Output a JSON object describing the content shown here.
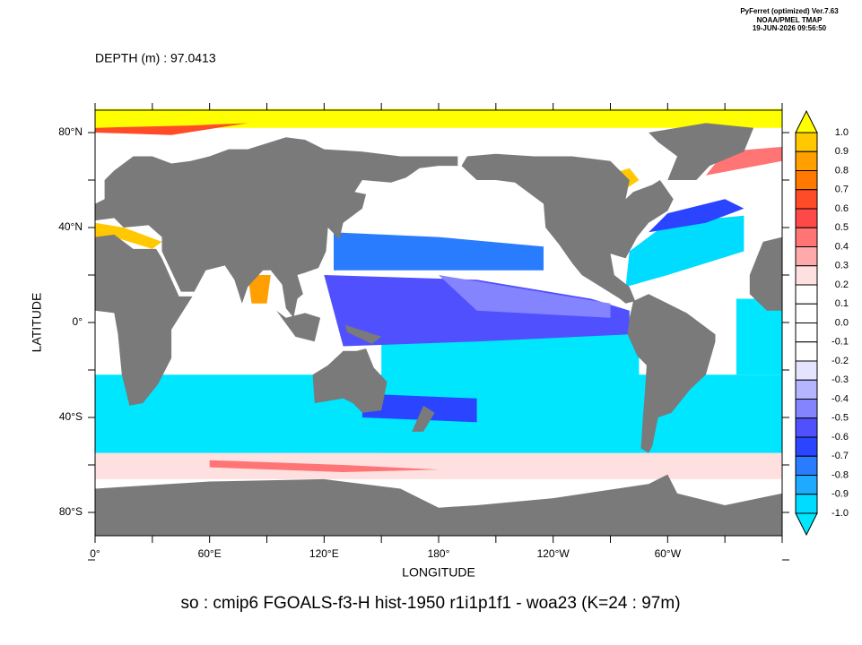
{
  "header": {
    "lines": [
      "PyFerret (optimized) Ver.7.63",
      "NOAA/PMEL TMAP",
      "19-JUN-2026 09:56:50"
    ]
  },
  "depth_label": "DEPTH (m) : 97.0413",
  "map": {
    "x_axis_title": "LONGITUDE",
    "y_axis_title": "LATITUDE",
    "x_tick_labels": [
      "0°",
      "60°E",
      "120°E",
      "180°",
      "120°W",
      "60°W"
    ],
    "y_tick_labels": [
      "80°N",
      "40°N",
      "0°",
      "40°S",
      "80°S"
    ]
  },
  "colorbar": {
    "labels": [
      "1.0",
      "0.9",
      "0.8",
      "0.7",
      "0.6",
      "0.5",
      "0.4",
      "0.3",
      "0.2",
      "0.1",
      "0.0",
      "-0.1",
      "-0.2",
      "-0.3",
      "-0.4",
      "-0.5",
      "-0.6",
      "-0.7",
      "-0.8",
      "-0.9",
      "-1.0"
    ],
    "colors": [
      "#ffc800",
      "#ffa000",
      "#ff7800",
      "#ff4c28",
      "#ff4848",
      "#ff7474",
      "#ffaaaa",
      "#ffe0e0",
      "#ffffff",
      "#ffffff",
      "#ffffff",
      "#ffffff",
      "#e4e4ff",
      "#b4b4ff",
      "#8484ff",
      "#5050ff",
      "#2a44ff",
      "#2a7cff",
      "#1eaaff",
      "#00dcff"
    ],
    "over_color": "#ffff00",
    "under_color": "#00e6ff"
  },
  "footer_title": "so : cmip6 FGOALS-f3-H hist-1950 r1i1p1f1 - woa23  (K=24 : 97m)"
}
